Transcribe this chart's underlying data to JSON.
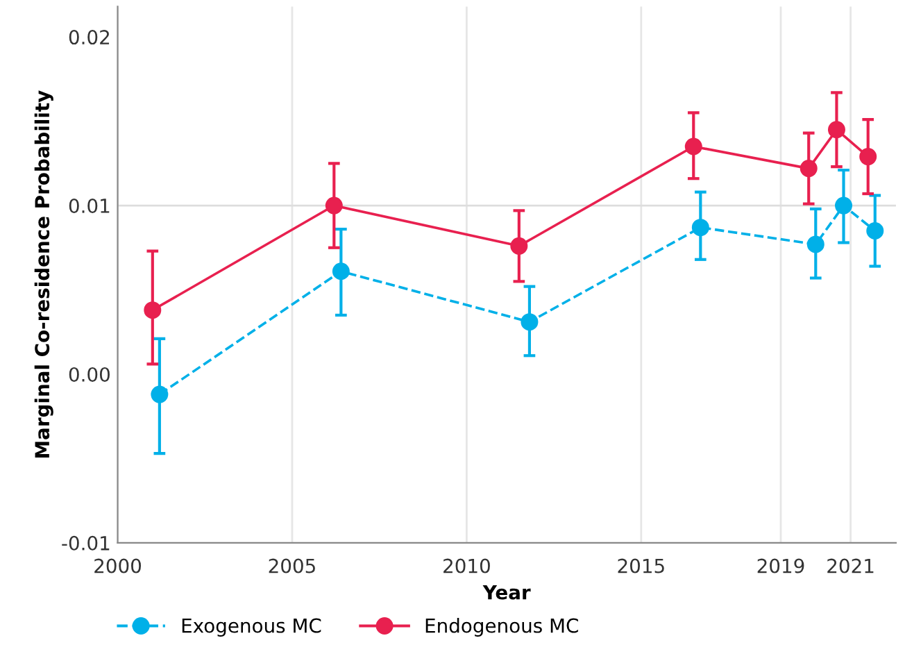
{
  "chart_data": {
    "type": "line",
    "xlabel": "Year",
    "ylabel": "Marginal Co-residence Probability",
    "xlim": [
      2000,
      2022.3
    ],
    "xticks": [
      2000,
      2005,
      2010,
      2015,
      2019,
      2021
    ],
    "ylim": [
      -0.01,
      0.0218
    ],
    "yticks": [
      0.02,
      0.01,
      {
        "value": 0,
        "label": "0.00"
      },
      -0.01
    ],
    "grid": "x",
    "legend": "bottom",
    "marker": "circle",
    "ref_lines": [
      {
        "axis": "y",
        "value": 0.01,
        "color": "#dddddd"
      }
    ],
    "series": [
      {
        "name": "Exogenous MC",
        "color": "#00b0e8",
        "line_style": "dashed",
        "x": [
          2001.2,
          2006.4,
          2011.8,
          2016.7,
          2020.0,
          2020.8,
          2021.7
        ],
        "values": [
          -0.0012,
          0.0061,
          0.0031,
          0.0087,
          0.0077,
          0.01,
          0.0085
        ],
        "errors": [
          [
            -0.0047,
            0.0021
          ],
          [
            0.0035,
            0.0086
          ],
          [
            0.0011,
            0.0052
          ],
          [
            0.0068,
            0.0108
          ],
          [
            0.0057,
            0.0098
          ],
          [
            0.0078,
            0.0121
          ],
          [
            0.0064,
            0.0106
          ]
        ]
      },
      {
        "name": "Endogenous MC",
        "color": "#e8204f",
        "line_style": "solid",
        "x": [
          2001.0,
          2006.2,
          2011.5,
          2016.5,
          2019.8,
          2020.6,
          2021.5
        ],
        "values": [
          0.0038,
          0.01,
          0.0076,
          0.0135,
          0.0122,
          0.0145,
          0.0129
        ],
        "errors": [
          [
            0.0006,
            0.0073
          ],
          [
            0.0075,
            0.0125
          ],
          [
            0.0055,
            0.0097
          ],
          [
            0.0116,
            0.0155
          ],
          [
            0.0101,
            0.0143
          ],
          [
            0.0123,
            0.0167
          ],
          [
            0.0107,
            0.0151
          ]
        ]
      }
    ]
  }
}
